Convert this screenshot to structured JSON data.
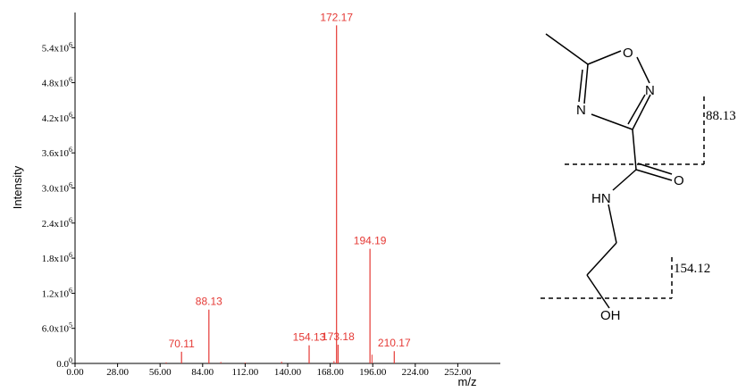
{
  "chart_data": {
    "type": "bar",
    "xlabel": "m/z",
    "ylabel": "Intensity",
    "xlim": [
      0,
      280
    ],
    "ylim": [
      0,
      6000000
    ],
    "x_ticks": [
      {
        "value": 0,
        "label": "0.00"
      },
      {
        "value": 28,
        "label": "28.00"
      },
      {
        "value": 56,
        "label": "56.00"
      },
      {
        "value": 84,
        "label": "84.00"
      },
      {
        "value": 112,
        "label": "112.00"
      },
      {
        "value": 140,
        "label": "140.00"
      },
      {
        "value": 168,
        "label": "168.00"
      },
      {
        "value": 196,
        "label": "196.00"
      },
      {
        "value": 224,
        "label": "224.00"
      },
      {
        "value": 252,
        "label": "252.00"
      }
    ],
    "y_ticks": [
      {
        "value": 0,
        "base": "0.0",
        "exp": "0"
      },
      {
        "value": 600000,
        "base": "6.0x10",
        "exp": "5"
      },
      {
        "value": 1200000,
        "base": "1.2x10",
        "exp": "6"
      },
      {
        "value": 1800000,
        "base": "1.8x10",
        "exp": "6"
      },
      {
        "value": 2400000,
        "base": "2.4x10",
        "exp": "6"
      },
      {
        "value": 3000000,
        "base": "3.0x10",
        "exp": "6"
      },
      {
        "value": 3600000,
        "base": "3.6x10",
        "exp": "6"
      },
      {
        "value": 4200000,
        "base": "4.2x10",
        "exp": "6"
      },
      {
        "value": 4800000,
        "base": "4.8x10",
        "exp": "6"
      },
      {
        "value": 5400000,
        "base": "5.4x10",
        "exp": "6"
      }
    ],
    "labeled_peaks": [
      {
        "mz": 70.11,
        "intensity": 200000,
        "label": "70.11"
      },
      {
        "mz": 88.13,
        "intensity": 920000,
        "label": "88.13"
      },
      {
        "mz": 154.13,
        "intensity": 310000,
        "label": "154.13"
      },
      {
        "mz": 172.17,
        "intensity": 5780000,
        "label": "172.17"
      },
      {
        "mz": 173.18,
        "intensity": 320000,
        "label": "173.18"
      },
      {
        "mz": 194.19,
        "intensity": 1960000,
        "label": "194.19"
      },
      {
        "mz": 210.17,
        "intensity": 210000,
        "label": "210.17"
      }
    ],
    "minor_peaks": [
      {
        "mz": 60.0,
        "intensity": 20000
      },
      {
        "mz": 96.0,
        "intensity": 25000
      },
      {
        "mz": 112.0,
        "intensity": 15000
      },
      {
        "mz": 136.0,
        "intensity": 30000
      },
      {
        "mz": 170.5,
        "intensity": 40000
      },
      {
        "mz": 195.5,
        "intensity": 150000
      }
    ],
    "structure": {
      "atoms": {
        "o_ring": "O",
        "n_right": "N",
        "n_left": "N",
        "o_carbonyl": "O",
        "nh": "HN",
        "oh": "OH"
      },
      "fragments": [
        {
          "label": "88.13"
        },
        {
          "label": "154.12"
        }
      ]
    },
    "colors": {
      "peaks": "#e53935",
      "axis": "#000000"
    }
  }
}
